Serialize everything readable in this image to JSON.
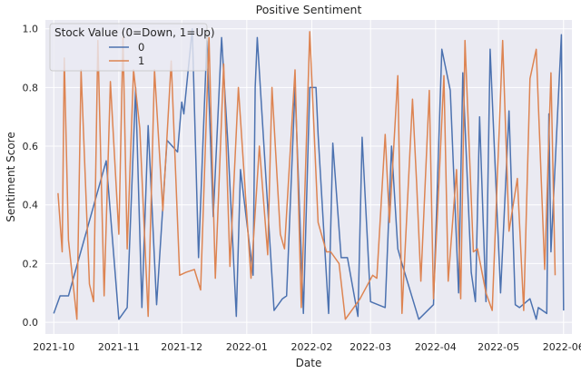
{
  "chart_data": {
    "type": "line",
    "title": "Positive Sentiment",
    "xlabel": "Date",
    "ylabel": "Sentiment Score",
    "x_axis": "date",
    "xlim": [
      "2021-09-27",
      "2022-06-05"
    ],
    "ylim": [
      -0.04,
      1.03
    ],
    "y_ticks": [
      0.0,
      0.2,
      0.4,
      0.6,
      0.8,
      1.0
    ],
    "y_tick_labels": [
      "0.0",
      "0.2",
      "0.4",
      "0.6",
      "0.8",
      "1.0"
    ],
    "x_ticks": [
      "2021-10-01",
      "2021-11-01",
      "2021-12-01",
      "2022-01-01",
      "2022-02-01",
      "2022-03-01",
      "2022-04-01",
      "2022-05-01",
      "2022-06-01"
    ],
    "x_tick_labels": [
      "2021-10",
      "2021-11",
      "2021-12",
      "2022-01",
      "2022-02",
      "2022-03",
      "2022-04",
      "2022-05",
      "2022-06"
    ],
    "grid": true,
    "plot_background": "#eaeaf2",
    "grid_color": "#ffffff",
    "legend": {
      "title": "Stock Value (0=Down, 1=Up)",
      "placement": "upper-left"
    },
    "series": [
      {
        "name": "0",
        "color": "#4c72b0",
        "x": [
          "2021-10-01",
          "2021-10-04",
          "2021-10-08",
          "2021-10-26",
          "2021-11-01",
          "2021-11-05",
          "2021-11-09",
          "2021-11-12",
          "2021-11-15",
          "2021-11-19",
          "2021-11-24",
          "2021-11-29",
          "2021-12-01",
          "2021-12-02",
          "2021-12-06",
          "2021-12-09",
          "2021-12-13",
          "2021-12-16",
          "2021-12-20",
          "2021-12-23",
          "2021-12-27",
          "2021-12-29",
          "2022-01-04",
          "2022-01-05",
          "2022-01-06",
          "2022-01-14",
          "2022-01-18",
          "2022-01-20",
          "2022-01-24",
          "2022-01-28",
          "2022-01-31",
          "2022-02-03",
          "2022-02-04",
          "2022-02-09",
          "2022-02-11",
          "2022-02-15",
          "2022-02-18",
          "2022-02-23",
          "2022-02-25",
          "2022-03-01",
          "2022-03-08",
          "2022-03-11",
          "2022-03-14",
          "2022-03-16",
          "2022-03-24",
          "2022-03-31",
          "2022-04-04",
          "2022-04-08",
          "2022-04-12",
          "2022-04-14",
          "2022-04-18",
          "2022-04-20",
          "2022-04-22",
          "2022-04-25",
          "2022-04-27",
          "2022-05-02",
          "2022-05-06",
          "2022-05-09",
          "2022-05-11",
          "2022-05-16",
          "2022-05-19",
          "2022-05-20",
          "2022-05-24",
          "2022-05-25",
          "2022-05-26",
          "2022-05-31"
        ],
        "y": [
          0.03,
          0.09,
          0.09,
          0.55,
          0.01,
          0.05,
          0.8,
          0.05,
          0.67,
          0.06,
          0.62,
          0.58,
          0.75,
          0.71,
          1.0,
          0.22,
          0.96,
          0.36,
          0.97,
          0.61,
          0.02,
          0.52,
          0.16,
          0.8,
          0.97,
          0.04,
          0.08,
          0.09,
          0.8,
          0.03,
          0.8,
          0.8,
          0.64,
          0.03,
          0.61,
          0.22,
          0.22,
          0.02,
          0.63,
          0.07,
          0.05,
          0.6,
          0.25,
          0.2,
          0.01,
          0.06,
          0.93,
          0.79,
          0.1,
          0.85,
          0.17,
          0.07,
          0.7,
          0.07,
          0.93,
          0.1,
          0.72,
          0.06,
          0.05,
          0.08,
          0.01,
          0.05,
          0.03,
          0.71,
          0.24,
          0.98
        ],
        "x_end": "2022-06-01",
        "y_end": 0.04
      },
      {
        "name": "1",
        "color": "#dd8452",
        "x": [
          "2021-10-03",
          "2021-10-05",
          "2021-10-06",
          "2021-10-08",
          "2021-10-12",
          "2021-10-14",
          "2021-10-18",
          "2021-10-20",
          "2021-10-22",
          "2021-10-25",
          "2021-10-28",
          "2021-11-01",
          "2021-11-03",
          "2021-11-05",
          "2021-11-08",
          "2021-11-11",
          "2021-11-15",
          "2021-11-18",
          "2021-11-22",
          "2021-11-26",
          "2021-11-30",
          "2021-12-03",
          "2021-12-07",
          "2021-12-10",
          "2021-12-14",
          "2021-12-17",
          "2021-12-21",
          "2021-12-24",
          "2021-12-28",
          "2022-01-03",
          "2022-01-07",
          "2022-01-11",
          "2022-01-13",
          "2022-01-17",
          "2022-01-19",
          "2022-01-24",
          "2022-01-27",
          "2022-01-31",
          "2022-02-04",
          "2022-02-08",
          "2022-02-10",
          "2022-02-14",
          "2022-02-17",
          "2022-02-22",
          "2022-02-24",
          "2022-03-02",
          "2022-03-04",
          "2022-03-08",
          "2022-03-10",
          "2022-03-14",
          "2022-03-16",
          "2022-03-21",
          "2022-03-23",
          "2022-03-25",
          "2022-03-29",
          "2022-03-31",
          "2022-04-05",
          "2022-04-07",
          "2022-04-11",
          "2022-04-13",
          "2022-04-15",
          "2022-04-19",
          "2022-04-21",
          "2022-04-25",
          "2022-04-28",
          "2022-05-03",
          "2022-05-06",
          "2022-05-10",
          "2022-05-13",
          "2022-05-16",
          "2022-05-19",
          "2022-05-23",
          "2022-05-26",
          "2022-05-28"
        ],
        "y": [
          0.44,
          0.24,
          0.9,
          0.28,
          0.01,
          0.86,
          0.13,
          0.07,
          0.96,
          0.09,
          0.82,
          0.3,
          0.97,
          0.25,
          0.86,
          0.66,
          0.02,
          0.86,
          0.38,
          0.89,
          0.16,
          0.17,
          0.18,
          0.11,
          0.97,
          0.15,
          0.88,
          0.19,
          0.8,
          0.15,
          0.6,
          0.23,
          0.8,
          0.3,
          0.25,
          0.86,
          0.05,
          0.99,
          0.34,
          0.24,
          0.24,
          0.2,
          0.01,
          0.06,
          0.08,
          0.16,
          0.15,
          0.64,
          0.34,
          0.84,
          0.03,
          0.76,
          0.47,
          0.14,
          0.79,
          0.08,
          0.84,
          0.14,
          0.52,
          0.08,
          0.96,
          0.24,
          0.25,
          0.1,
          0.04,
          0.96,
          0.31,
          0.49,
          0.04,
          0.83,
          0.93,
          0.18,
          0.85,
          0.16
        ],
        "x_end": "2022-05-28",
        "y_end": 0.16
      }
    ]
  }
}
